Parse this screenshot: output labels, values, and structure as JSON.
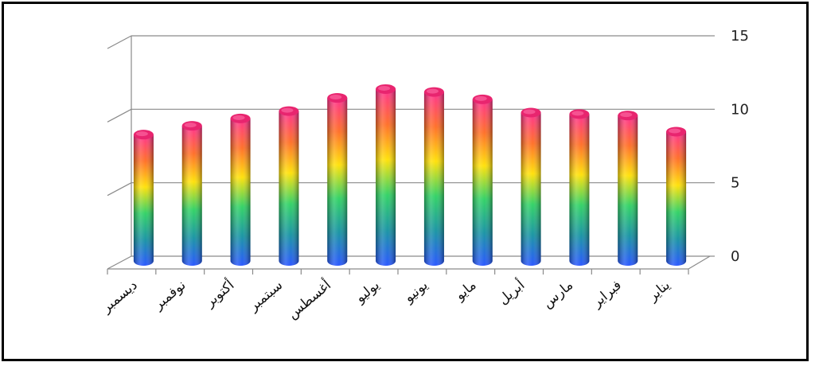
{
  "chart_data": {
    "type": "bar",
    "style": "3d-cylinder",
    "title": "",
    "xlabel": "",
    "ylabel": "",
    "ylim": [
      0,
      15
    ],
    "yticks": [
      0,
      5,
      10,
      15
    ],
    "grid": true,
    "legend": "none",
    "categories": [
      "ديسمبر",
      "نوفمبر",
      "أكتوبر",
      "سبتمبر",
      "أغسطس",
      "يوليو",
      "يونيو",
      "مايو",
      "أبريل",
      "مارس",
      "فبراير",
      "يناير"
    ],
    "values": [
      8.6,
      9.2,
      9.7,
      10.2,
      11.1,
      11.7,
      11.5,
      11.0,
      10.1,
      10.0,
      9.9,
      8.8
    ],
    "gradient_colors": [
      "#ff2a8a",
      "#ff6a20",
      "#ffe000",
      "#2ad060",
      "#1090a0",
      "#2050ff"
    ],
    "grid_color": "#8a8a8a",
    "frame_color": "#000000"
  }
}
